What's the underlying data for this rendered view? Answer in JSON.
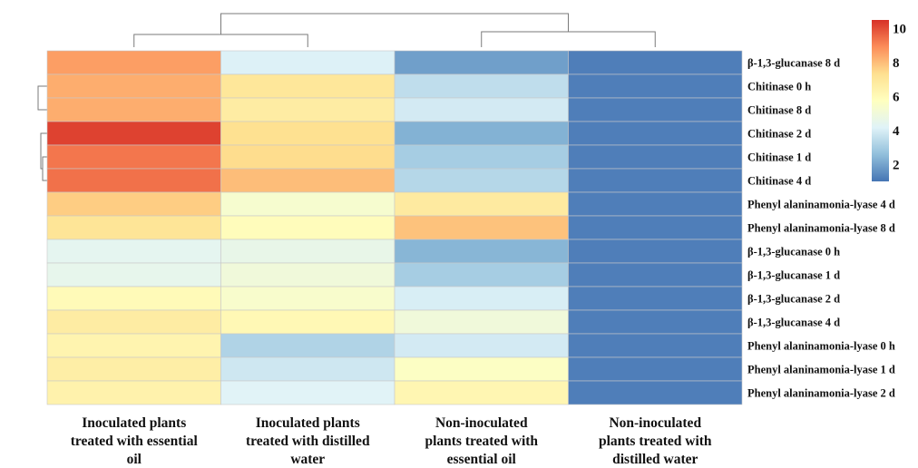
{
  "chart_data": {
    "type": "heatmap",
    "rows": [
      "β-1,3-glucanase 8 d",
      "Chitinase 0 h",
      "Chitinase 8 d",
      "Chitinase 2 d",
      "Chitinase 1 d",
      "Chitinase 4 d",
      "Phenyl alaninamonia-lyase  4 d",
      "Phenyl alaninamonia-lyase 8 d",
      "β-1,3-glucanase 0 h",
      "β-1,3-glucanase 1 d",
      "β-1,3-glucanase 2 d",
      "β-1,3-glucanase 4 d",
      "Phenyl alaninamonia-lyase 0 h",
      "Phenyl alaninamonia-lyase 1 d",
      "Phenyl alaninamonia-lyase 2 d"
    ],
    "columns": [
      [
        "Inoculated plants",
        "treated with essential",
        "oil"
      ],
      [
        "Inoculated plants",
        "treated with distilled",
        "water"
      ],
      [
        "Non-inoculated",
        "plants treated with",
        "essential oil"
      ],
      [
        "Non-inoculated",
        "plants treated with",
        "distilled water"
      ]
    ],
    "values": [
      [
        8.6,
        4.1,
        1.9,
        1.2
      ],
      [
        8.3,
        7.0,
        3.5,
        1.2
      ],
      [
        8.3,
        6.7,
        3.9,
        1.2
      ],
      [
        10.2,
        7.3,
        2.3,
        1.2
      ],
      [
        9.3,
        7.4,
        3.0,
        1.2
      ],
      [
        9.4,
        8.0,
        3.3,
        1.2
      ],
      [
        7.7,
        5.3,
        6.8,
        1.2
      ],
      [
        7.1,
        5.9,
        7.9,
        1.2
      ],
      [
        4.4,
        4.6,
        2.4,
        1.2
      ],
      [
        4.5,
        5.0,
        3.0,
        1.2
      ],
      [
        6.0,
        5.4,
        4.0,
        1.2
      ],
      [
        6.7,
        6.1,
        5.0,
        1.2
      ],
      [
        6.3,
        3.2,
        3.9,
        1.2
      ],
      [
        6.6,
        3.8,
        5.6,
        1.2
      ],
      [
        6.4,
        4.2,
        6.2,
        1.2
      ]
    ],
    "color_scale": {
      "min": 1,
      "max": 10.5,
      "ticks": [
        2,
        4,
        6,
        8,
        10
      ],
      "colors": [
        "#4575b4",
        "#91bfdb",
        "#e0f3f8",
        "#ffffbf",
        "#fee090",
        "#fc8d59",
        "#d73027"
      ]
    },
    "legend": "top-right",
    "row_dendrogram": true,
    "column_dendrogram": true
  }
}
